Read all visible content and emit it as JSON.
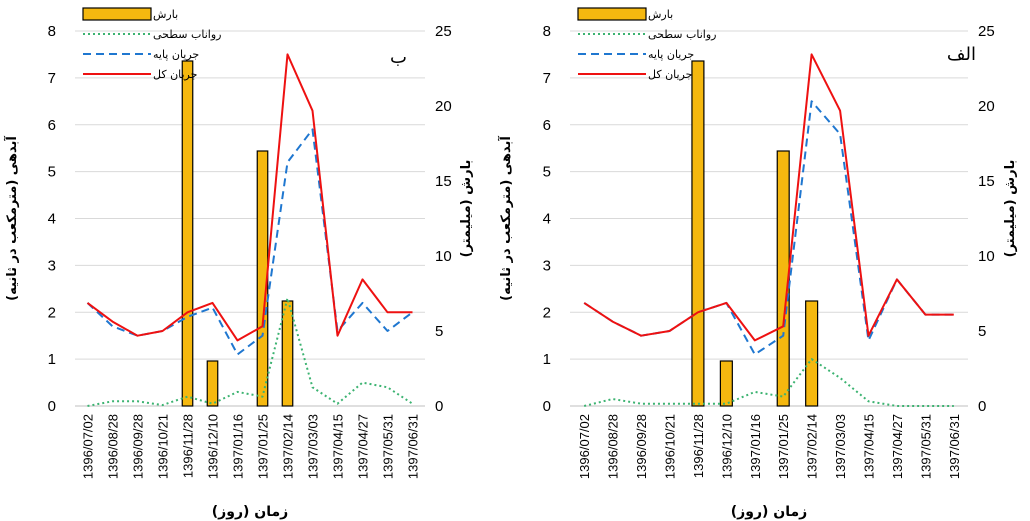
{
  "chart_data": [
    {
      "type": "bar+line",
      "panel_label": "ب",
      "categories": [
        "1396/07/02",
        "1396/08/28",
        "1396/09/28",
        "1396/10/21",
        "1396/11/28",
        "1396/12/10",
        "1397/01/16",
        "1397/01/25",
        "1397/02/14",
        "1397/03/03",
        "1397/04/15",
        "1397/04/27",
        "1397/05/31",
        "1397/06/31"
      ],
      "xlabel": "زمان (روز)",
      "ylabel_left": "آبدهی (مترمکعب در ثانیه)",
      "ylabel_right": "بارش (میلیمتر)",
      "ylim_left": [
        0,
        8
      ],
      "ylim_right": [
        0,
        25
      ],
      "yticks_left": [
        "0",
        "1",
        "2",
        "3",
        "4",
        "5",
        "6",
        "7",
        "8"
      ],
      "yticks_right": [
        "0",
        "5",
        "10",
        "15",
        "20",
        "25"
      ],
      "legend": [
        "بارش",
        "رواناب سطحی",
        "جریان پایه",
        "جریان کل"
      ],
      "legend_position": "top-left",
      "bars": {
        "name": "بارش",
        "color": "#f5b80f",
        "values": [
          0,
          0,
          0,
          0,
          23,
          3,
          0,
          17,
          7,
          0,
          0,
          0,
          0,
          0
        ]
      },
      "series": [
        {
          "name": "رواناب سطحی",
          "style": "dotted",
          "color": "#3cb371",
          "values": [
            0,
            0.1,
            0.1,
            0.02,
            0.2,
            0.05,
            0.3,
            0.2,
            2.3,
            0.4,
            0.05,
            0.5,
            0.4,
            0.05
          ]
        },
        {
          "name": "جریان پایه",
          "style": "dashed",
          "color": "#1f77d0",
          "values": [
            2.2,
            1.7,
            1.5,
            1.6,
            1.9,
            2.1,
            1.1,
            1.5,
            5.2,
            5.9,
            1.6,
            2.2,
            1.6,
            2.0
          ]
        },
        {
          "name": "جریان کل",
          "style": "solid",
          "color": "#ee1111",
          "values": [
            2.2,
            1.8,
            1.5,
            1.6,
            2.0,
            2.2,
            1.4,
            1.7,
            7.5,
            6.3,
            1.5,
            2.7,
            2.0,
            2.0
          ]
        }
      ]
    },
    {
      "type": "bar+line",
      "panel_label": "الف",
      "categories": [
        "1396/07/02",
        "1396/08/28",
        "1396/09/28",
        "1396/10/21",
        "1396/11/28",
        "1396/12/10",
        "1397/01/16",
        "1397/01/25",
        "1397/02/14",
        "1397/03/03",
        "1397/04/15",
        "1397/04/27",
        "1397/05/31",
        "1397/06/31"
      ],
      "xlabel": "زمان (روز)",
      "ylabel_left": "آبدهی (مترمکعب در ثانیه)",
      "ylabel_right": "بارش (میلیمتر)",
      "ylim_left": [
        0,
        8
      ],
      "ylim_right": [
        0,
        25
      ],
      "yticks_left": [
        "0",
        "1",
        "2",
        "3",
        "4",
        "5",
        "6",
        "7",
        "8"
      ],
      "yticks_right": [
        "0",
        "5",
        "10",
        "15",
        "20",
        "25"
      ],
      "legend": [
        "بارش",
        "رواناب سطحی",
        "جریان پایه",
        "جریان کل"
      ],
      "legend_position": "top-left",
      "bars": {
        "name": "بارش",
        "color": "#f5b80f",
        "values": [
          0,
          0,
          0,
          0,
          23,
          3,
          0,
          17,
          7,
          0,
          0,
          0,
          0,
          0
        ]
      },
      "series": [
        {
          "name": "رواناب سطحی",
          "style": "dotted",
          "color": "#3cb371",
          "values": [
            0,
            0.15,
            0.05,
            0.05,
            0.05,
            0.05,
            0.3,
            0.2,
            1.0,
            0.6,
            0.1,
            0.0,
            0.0,
            0.0
          ]
        },
        {
          "name": "جریان پایه",
          "style": "dashed",
          "color": "#1f77d0",
          "values": [
            2.2,
            1.8,
            1.5,
            1.6,
            2.0,
            2.2,
            1.1,
            1.5,
            6.5,
            5.8,
            1.4,
            2.7,
            1.95,
            1.95
          ]
        },
        {
          "name": "جریان کل",
          "style": "solid",
          "color": "#ee1111",
          "values": [
            2.2,
            1.8,
            1.5,
            1.6,
            2.0,
            2.2,
            1.4,
            1.7,
            7.5,
            6.3,
            1.5,
            2.7,
            1.95,
            1.95
          ]
        }
      ]
    }
  ]
}
